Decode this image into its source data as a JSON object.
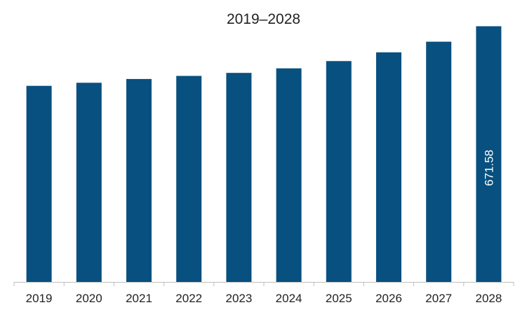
{
  "chart_data": {
    "type": "bar",
    "title": "2019–2028",
    "xlabel": "",
    "ylabel": "",
    "categories": [
      "2019",
      "2020",
      "2021",
      "2022",
      "2023",
      "2024",
      "2025",
      "2026",
      "2027",
      "2028"
    ],
    "series": [
      {
        "values": [
          515,
          523,
          533,
          541,
          549,
          561,
          580,
          603,
          631,
          671.58
        ]
      }
    ],
    "data_labels": [
      {
        "category": "2028",
        "text": "671.58"
      }
    ],
    "ylim": [
      0,
      700
    ],
    "grid": false,
    "legend": "none",
    "colors": {
      "bar": "#08507f",
      "axis": "#bfbfbf",
      "text": "#222222",
      "label": "#ffffff"
    }
  }
}
